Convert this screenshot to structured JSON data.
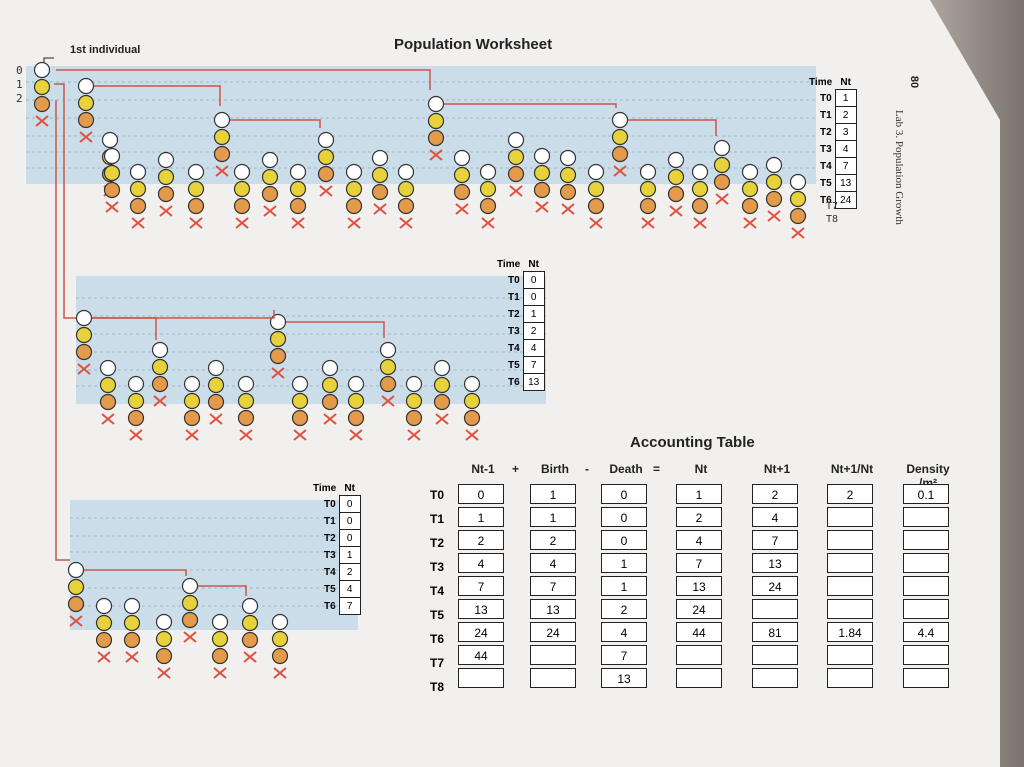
{
  "title": "Population Worksheet",
  "first_individual_label": "1st individual",
  "page_number": "80",
  "chapter_label": "Lab 3.   Population Growth",
  "margin_marks": [
    "0",
    "1",
    "2"
  ],
  "time_header": "Time",
  "nt_header": "Nt",
  "time_tables": [
    {
      "rows": [
        {
          "t": "T0",
          "n": "1"
        },
        {
          "t": "T1",
          "n": "2"
        },
        {
          "t": "T2",
          "n": "3"
        },
        {
          "t": "T3",
          "n": "4"
        },
        {
          "t": "T4",
          "n": "7"
        },
        {
          "t": "T5",
          "n": "13"
        },
        {
          "t": "T6",
          "n": "24"
        }
      ]
    },
    {
      "rows": [
        {
          "t": "T0",
          "n": "0"
        },
        {
          "t": "T1",
          "n": "0"
        },
        {
          "t": "T2",
          "n": "1"
        },
        {
          "t": "T3",
          "n": "2"
        },
        {
          "t": "T4",
          "n": "4"
        },
        {
          "t": "T5",
          "n": "7"
        },
        {
          "t": "T6",
          "n": "13"
        }
      ]
    },
    {
      "rows": [
        {
          "t": "T0",
          "n": "0"
        },
        {
          "t": "T1",
          "n": "0"
        },
        {
          "t": "T2",
          "n": "0"
        },
        {
          "t": "T3",
          "n": "1"
        },
        {
          "t": "T4",
          "n": "2"
        },
        {
          "t": "T5",
          "n": "4"
        },
        {
          "t": "T6",
          "n": "7"
        }
      ]
    }
  ],
  "table1_extra": [
    "T7",
    "T8"
  ],
  "accounting": {
    "title": "Accounting Table",
    "row_labels": [
      "T0",
      "T1",
      "T2",
      "T3",
      "T4",
      "T5",
      "T6",
      "T7",
      "T8"
    ],
    "columns": [
      {
        "header": "Nt-1",
        "values": [
          "0",
          "1",
          "2",
          "4",
          "7",
          "13",
          "24",
          "44",
          ""
        ]
      },
      {
        "header": "Birth",
        "values": [
          "1",
          "1",
          "2",
          "4",
          "7",
          "13",
          "24",
          "",
          ""
        ]
      },
      {
        "header": "Death",
        "values": [
          "0",
          "0",
          "0",
          "1",
          "1",
          "2",
          "4",
          "7",
          "13"
        ]
      },
      {
        "header": "Nt",
        "values": [
          "1",
          "2",
          "4",
          "7",
          "13",
          "24",
          "44",
          "",
          ""
        ]
      },
      {
        "header": "Nt+1",
        "values": [
          "2",
          "4",
          "7",
          "13",
          "24",
          "",
          "81",
          "",
          ""
        ]
      },
      {
        "header": "Nt+1/Nt",
        "values": [
          "2",
          "",
          "",
          "",
          "",
          "",
          "1.84",
          "",
          ""
        ]
      },
      {
        "header": "Density /m²",
        "values": [
          "0.1",
          "",
          "",
          "",
          "",
          "",
          "4.4",
          "",
          ""
        ]
      }
    ],
    "operators": [
      "+",
      "-",
      "="
    ]
  },
  "colors": {
    "white_circle": "#ffffff",
    "yellow_circle": "#e8d23c",
    "orange_circle": "#e39a4a",
    "death_x": "#e0523f",
    "arrow": "#c9574a",
    "band": "#aacde6"
  }
}
